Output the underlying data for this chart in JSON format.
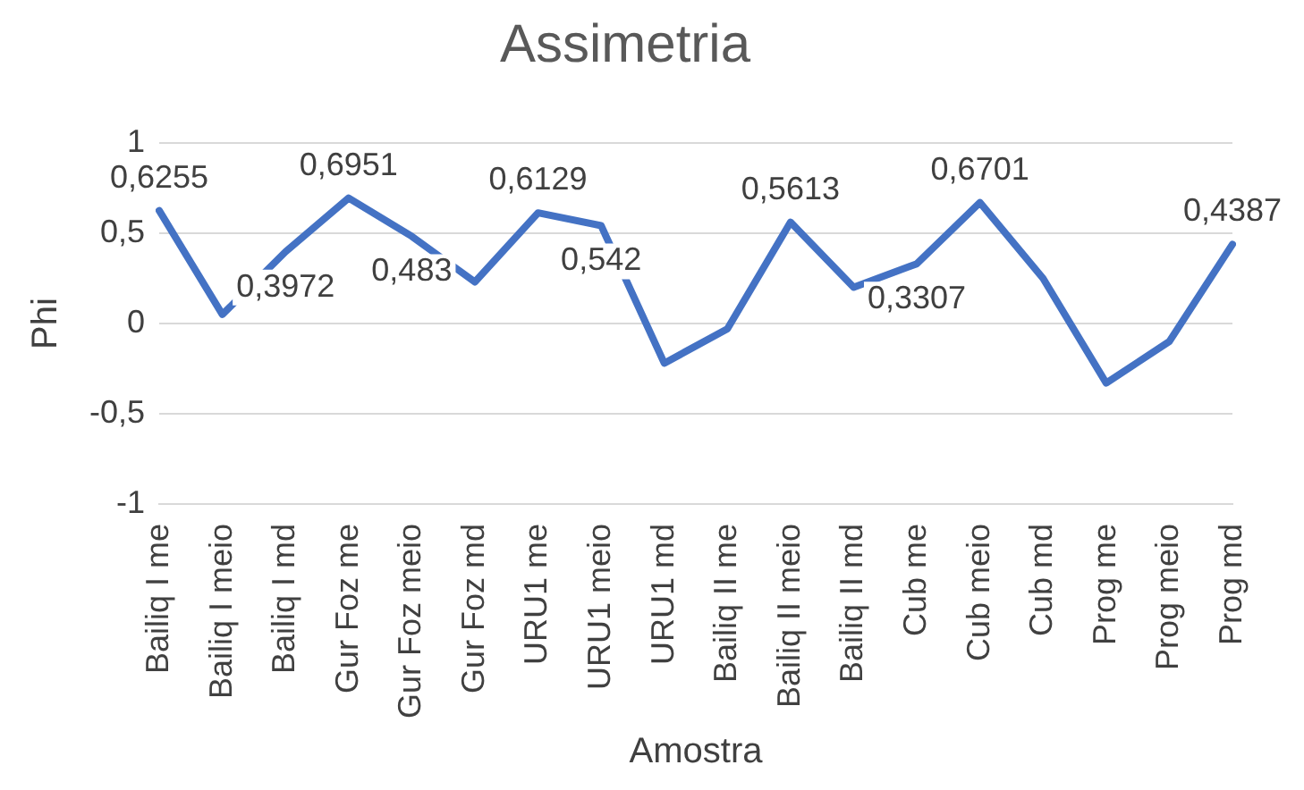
{
  "chart_data": {
    "type": "line",
    "title": "Assimetria",
    "xlabel": "Amostra",
    "ylabel": "Phi",
    "categories": [
      "Bailiq I me",
      "Bailiq I meio",
      "Bailiq I md",
      "Gur Foz me",
      "Gur Foz meio",
      "Gur Foz md",
      "URU1 me",
      "URU1 meio",
      "URU1 md",
      "Bailiq II me",
      "Bailiq II meio",
      "Bailiq II md",
      "Cub me",
      "Cub meio",
      "Cub md",
      "Prog me",
      "Prog meio",
      "Prog md"
    ],
    "series": [
      {
        "color": "#4472c4",
        "values": [
          0.6255,
          0.05,
          0.3972,
          0.6951,
          0.483,
          0.23,
          0.6129,
          0.542,
          -0.22,
          -0.03,
          0.5613,
          0.2,
          0.3307,
          0.6701,
          0.25,
          -0.33,
          -0.1,
          0.4387
        ],
        "value_labels": [
          "0,6255",
          null,
          "0,3972",
          "0,6951",
          "0,483",
          null,
          "0,6129",
          "0,542",
          null,
          null,
          "0,5613",
          null,
          "0,3307",
          "0,6701",
          null,
          null,
          null,
          "0,4387"
        ]
      }
    ],
    "ylim": [
      -1,
      1
    ],
    "yticks": [
      {
        "value": -1,
        "label": "-1"
      },
      {
        "value": -0.5,
        "label": "-0,5"
      },
      {
        "value": 0,
        "label": "0"
      },
      {
        "value": 0.5,
        "label": "0,5"
      },
      {
        "value": 1,
        "label": "1"
      }
    ],
    "grid": "y",
    "legend": false,
    "marker": "none",
    "line_style": "solid"
  }
}
